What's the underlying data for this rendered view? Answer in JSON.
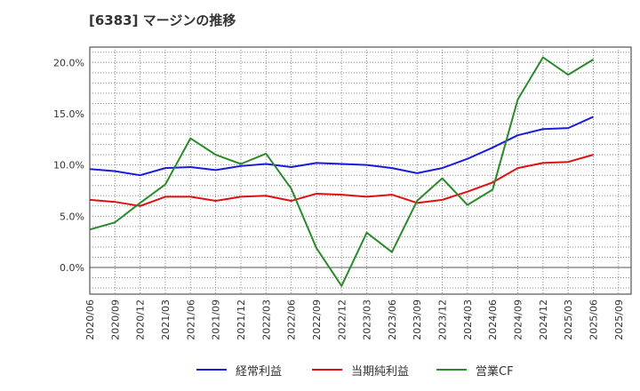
{
  "title": "[6383]  マージンの推移",
  "chart_data": {
    "type": "line",
    "title": "[6383]  マージンの推移",
    "xlabel": "",
    "ylabel": "",
    "categories": [
      "2020/06",
      "2020/09",
      "2020/12",
      "2021/03",
      "2021/06",
      "2021/09",
      "2021/12",
      "2022/03",
      "2022/06",
      "2022/09",
      "2022/12",
      "2023/03",
      "2023/06",
      "2023/09",
      "2023/12",
      "2024/03",
      "2024/06",
      "2024/09",
      "2024/12",
      "2025/03",
      "2025/06",
      "2025/09"
    ],
    "yticks": [
      "20.0%",
      "15.0%",
      "10.0%",
      "5.0%",
      "0.0%"
    ],
    "ytick_values": [
      20,
      15,
      10,
      5,
      0
    ],
    "ylim": [
      -2.6,
      21.5
    ],
    "grid": true,
    "legend_position": "bottom",
    "series": [
      {
        "name": "経常利益",
        "color": "#1a1adb",
        "values": [
          9.6,
          9.4,
          9.0,
          9.7,
          9.8,
          9.5,
          9.9,
          10.1,
          9.8,
          10.2,
          10.1,
          10.0,
          9.7,
          9.2,
          9.7,
          10.6,
          11.7,
          12.9,
          13.5,
          13.6,
          14.7,
          null
        ]
      },
      {
        "name": "当期純利益",
        "color": "#e01010",
        "values": [
          6.6,
          6.4,
          6.0,
          6.9,
          6.9,
          6.5,
          6.9,
          7.0,
          6.5,
          7.2,
          7.1,
          6.9,
          7.1,
          6.3,
          6.6,
          7.4,
          8.3,
          9.7,
          10.2,
          10.3,
          11.0,
          null
        ]
      },
      {
        "name": "営業CF",
        "color": "#2a8a2a",
        "values": [
          3.7,
          4.4,
          6.3,
          8.1,
          12.6,
          11.0,
          10.1,
          11.1,
          7.7,
          1.9,
          -1.8,
          3.4,
          1.5,
          6.5,
          8.7,
          6.1,
          7.6,
          16.4,
          20.5,
          18.8,
          20.3,
          null
        ]
      }
    ]
  }
}
